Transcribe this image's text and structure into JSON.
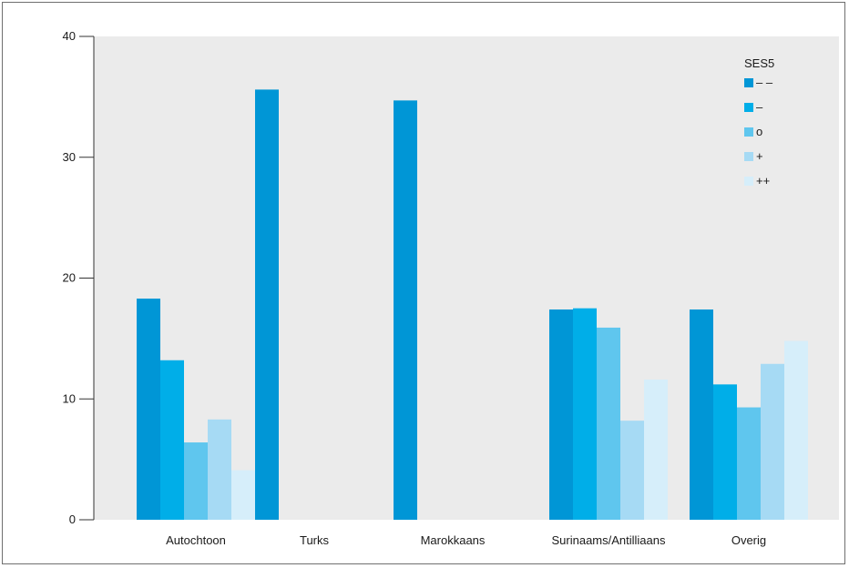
{
  "chart_data": {
    "type": "bar",
    "title": "",
    "xlabel": "",
    "ylabel": "",
    "categories": [
      "Autochtoon",
      "Turks",
      "Marokkaans",
      "Surinaams/Antilliaans",
      "Overig"
    ],
    "ylim": [
      0,
      40
    ],
    "yticks": [
      0,
      10,
      20,
      30,
      40
    ],
    "yticks_labels": [
      "0",
      "10",
      "20",
      "30",
      "40"
    ],
    "grid": false,
    "plot_background": "#ebebeb",
    "legend": {
      "title": "SES5",
      "position": "top-right"
    },
    "series": [
      {
        "name": "– –",
        "color": "#0096d6",
        "values": [
          18.3,
          35.6,
          34.7,
          17.4,
          17.4
        ]
      },
      {
        "name": "–",
        "color": "#00aee8",
        "values": [
          13.2,
          null,
          null,
          17.5,
          11.2
        ]
      },
      {
        "name": "o",
        "color": "#5fc6ee",
        "values": [
          6.4,
          null,
          null,
          15.9,
          9.3
        ]
      },
      {
        "name": "+",
        "color": "#a6daf4",
        "values": [
          8.3,
          null,
          null,
          8.2,
          12.9
        ]
      },
      {
        "name": "++",
        "color": "#d6eefa",
        "values": [
          4.1,
          null,
          null,
          11.6,
          14.8
        ]
      }
    ]
  }
}
